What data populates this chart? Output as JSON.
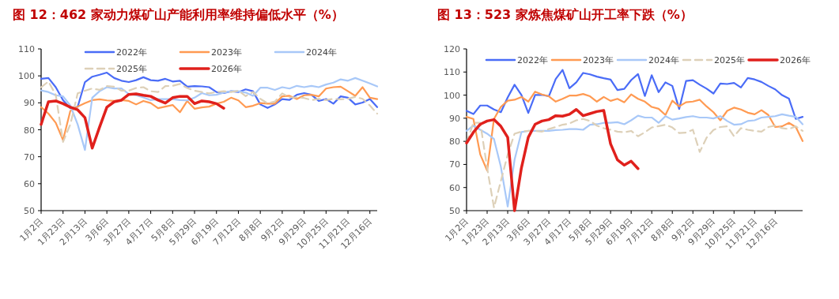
{
  "chart_data": [
    {
      "type": "line",
      "title": "图 12：462 家动力煤矿山产能利用率维持偏低水平（%）",
      "ylim": [
        50,
        110
      ],
      "yticks": [
        50,
        60,
        70,
        80,
        90,
        100,
        110
      ],
      "legend": "top",
      "categories": [
        "1月2日",
        null,
        null,
        "1月23日",
        null,
        null,
        "2月13日",
        null,
        null,
        "3月6日",
        null,
        null,
        "3月27日",
        null,
        null,
        "4月17日",
        null,
        null,
        "5月8日",
        null,
        null,
        "5月29日",
        null,
        null,
        "6月19日",
        null,
        null,
        "7月12日",
        null,
        null,
        "8月8日",
        null,
        null,
        "9月2日",
        null,
        null,
        "9月29日",
        null,
        null,
        "10月25日",
        null,
        null,
        "11月21日",
        null,
        null,
        "12月16日",
        null
      ],
      "series": [
        {
          "name": "2022年",
          "color": "#4a6cf7",
          "values": [
            98.9,
            99.2,
            95.8,
            91,
            88,
            88.5,
            97.7,
            99.7,
            100.4,
            101.2,
            99.2,
            98.2,
            97.7,
            98.4,
            99.5,
            98.4,
            98.2,
            98.9,
            97.9,
            98.2,
            96,
            96.2,
            96.1,
            95.8,
            94,
            93.6,
            94.3,
            94,
            95,
            94.3,
            89.4,
            88.1,
            89.4,
            91.4,
            91.1,
            93,
            93.6,
            93,
            90.7,
            91.4,
            89.7,
            92.4,
            91.9,
            89.4,
            90.1,
            91.4,
            88.4
          ]
        },
        {
          "name": "2023年",
          "color": "#ff9a52",
          "values": [
            88.4,
            86,
            82.6,
            76.2,
            87,
            88.6,
            89.9,
            91,
            91.3,
            90.9,
            90.7,
            91,
            90.7,
            89.4,
            90.7,
            89.9,
            88,
            88.6,
            89.2,
            86.5,
            90.7,
            87.8,
            88.3,
            88.6,
            89.7,
            90.4,
            91.9,
            90.9,
            88.4,
            88.9,
            89.9,
            89.7,
            89.7,
            92.4,
            92.6,
            91.4,
            92.8,
            93,
            92.4,
            95.3,
            95.8,
            96,
            94.3,
            92.6,
            95.8,
            91.9,
            91.4
          ]
        },
        {
          "name": "2024年",
          "color": "#a8c8f8",
          "values": [
            94.6,
            94,
            92.8,
            92.4,
            89,
            82,
            72.5,
            91.9,
            94.3,
            95.8,
            95.3,
            95.3,
            93.3,
            92.8,
            92,
            91,
            91.4,
            91.4,
            91.4,
            91,
            90.9,
            91.9,
            93.6,
            92.8,
            93,
            93.8,
            94.3,
            94.3,
            93.8,
            92.6,
            95.6,
            95.6,
            94.8,
            95.8,
            95.3,
            96.3,
            95.8,
            96.3,
            95.8,
            96.8,
            97.5,
            98.7,
            98.2,
            99.2,
            98.2,
            97.2,
            96.1
          ]
        },
        {
          "name": "2025年",
          "color": "#ddd0b8",
          "line_style": "dashed",
          "values": [
            95.8,
            97.9,
            93,
            75.5,
            82,
            93.5,
            94.5,
            95.3,
            94.8,
            96.2,
            96,
            94.5,
            94.5,
            95.5,
            95.8,
            94.3,
            94,
            96.2,
            96.3,
            97,
            95.5,
            94.5,
            94,
            93.5,
            94,
            94.3,
            94,
            94.5,
            92.5,
            94,
            91.5,
            89.8,
            90.5,
            93.5,
            92,
            92,
            91.8,
            91,
            91.5,
            91,
            91.5,
            91.3,
            91.5,
            92.2,
            91.5,
            89,
            86
          ]
        },
        {
          "name": "2026年",
          "color": "#e0201c",
          "values": [
            82,
            90.4,
            90.7,
            89.7,
            88.4,
            87.4,
            84.5,
            73.2,
            81,
            88.4,
            90.4,
            91,
            93.1,
            93.3,
            92.8,
            92.4,
            91,
            89.9,
            91.9,
            92.4,
            92.4,
            89.7,
            90.7,
            90.4,
            89.7,
            88,
            null,
            null,
            null,
            null,
            null,
            null,
            null,
            null,
            null,
            null,
            null,
            null,
            null,
            null,
            null,
            null,
            null,
            null,
            null,
            null,
            null
          ]
        }
      ]
    },
    {
      "type": "line",
      "title": "图 13：523 家炼焦煤矿山开工率下跌（%）",
      "ylim": [
        50,
        120
      ],
      "yticks": [
        50,
        60,
        70,
        80,
        90,
        100,
        110,
        120
      ],
      "legend": "top",
      "categories": [
        "1月2日",
        null,
        null,
        "1月23日",
        null,
        null,
        "2月13日",
        null,
        null,
        "3月6日",
        null,
        null,
        "3月27日",
        null,
        null,
        "4月17日",
        null,
        null,
        "5月8日",
        null,
        null,
        "5月29日",
        null,
        null,
        "6月19日",
        null,
        null,
        "7月12日",
        null,
        null,
        "8月8日",
        null,
        null,
        "9月2日",
        null,
        null,
        "9月29日",
        null,
        null,
        "10月25日",
        null,
        null,
        "11月21日",
        null,
        null,
        "12月16日",
        null,
        null,
        null,
        null
      ],
      "series": [
        {
          "name": "2022年",
          "color": "#4a6cf7",
          "values": [
            93.2,
            91.8,
            95.5,
            95.5,
            93.8,
            92.6,
            99,
            104.5,
            100.1,
            92.3,
            100.1,
            100.1,
            99.5,
            107,
            110.9,
            103,
            105.5,
            109.6,
            109,
            108,
            107.3,
            106.7,
            102.2,
            102.7,
            106.5,
            109.1,
            99.6,
            108.6,
            101.3,
            105.5,
            104,
            94,
            106.1,
            106.5,
            104.5,
            102.8,
            100.7,
            105,
            104.8,
            105.3,
            103.3,
            107.4,
            106.8,
            105.7,
            104,
            102.5,
            100,
            98.5,
            89.7,
            90.6
          ]
        },
        {
          "name": "2023年",
          "color": "#ff9a52",
          "values": [
            90.6,
            89.7,
            74.3,
            67.4,
            89.7,
            94.9,
            97.6,
            98,
            99.2,
            97.2,
            101.5,
            100.3,
            99.5,
            97.2,
            98.4,
            99.8,
            99.8,
            100.5,
            99.5,
            97.2,
            99.2,
            97.5,
            98.4,
            96.9,
            100.3,
            98.4,
            97.2,
            94.9,
            94.1,
            91.4,
            97.6,
            95.1,
            96.9,
            97.2,
            98,
            95.1,
            92.6,
            89.1,
            93.2,
            94.6,
            93.8,
            92.4,
            91.7,
            93.5,
            91.4,
            86.2,
            86.5,
            88,
            86.2,
            80.1
          ]
        },
        {
          "name": "2024年",
          "color": "#a8c8f8",
          "values": [
            84.5,
            86.8,
            85,
            83.3,
            81,
            69,
            51.8,
            72,
            84,
            84.5,
            84.5,
            84.5,
            84.5,
            84.9,
            85,
            85.3,
            85.3,
            85,
            87.2,
            87.4,
            88,
            88,
            88.3,
            87.4,
            89.1,
            91.1,
            90.3,
            90.3,
            88,
            90.9,
            89.4,
            89.9,
            90.5,
            90.9,
            90.3,
            90.3,
            89.9,
            90.9,
            88.8,
            87.2,
            87.4,
            88.8,
            89.1,
            90.3,
            90.6,
            90.9,
            91.7,
            91.1,
            90.6,
            87.4
          ]
        },
        {
          "name": "2025年",
          "color": "#ddd0b8",
          "line_style": "dashed",
          "values": [
            79.3,
            88,
            88,
            68.5,
            51.3,
            62.8,
            74.3,
            83.3,
            84.2,
            84.5,
            84.5,
            84.2,
            85.3,
            86.2,
            87.2,
            87.7,
            89.1,
            89.7,
            88.8,
            86.8,
            85.7,
            85,
            84.2,
            83.9,
            84.5,
            82.2,
            83.9,
            86,
            86.6,
            87.2,
            86,
            83.6,
            83.8,
            85,
            75.4,
            81.6,
            84.9,
            86.2,
            86.5,
            82.2,
            85.7,
            85,
            84.5,
            84.2,
            86.2,
            86.8,
            85.7,
            85.3,
            86.5,
            84.5
          ]
        },
        {
          "name": "2026年",
          "color": "#e0201c",
          "values": [
            79.3,
            83.9,
            87.4,
            88.8,
            89.4,
            86.5,
            81.7,
            50,
            68.5,
            81.7,
            87.4,
            88.8,
            89.4,
            91.1,
            90.9,
            91.7,
            93.8,
            91.1,
            92,
            92.9,
            93.4,
            78.9,
            72,
            69.7,
            71.4,
            68.2,
            null,
            null,
            null,
            null,
            null,
            null,
            null,
            null,
            null,
            null,
            null,
            null,
            null,
            null,
            null,
            null,
            null,
            null,
            null,
            null,
            null,
            null,
            null,
            null
          ]
        }
      ]
    }
  ]
}
